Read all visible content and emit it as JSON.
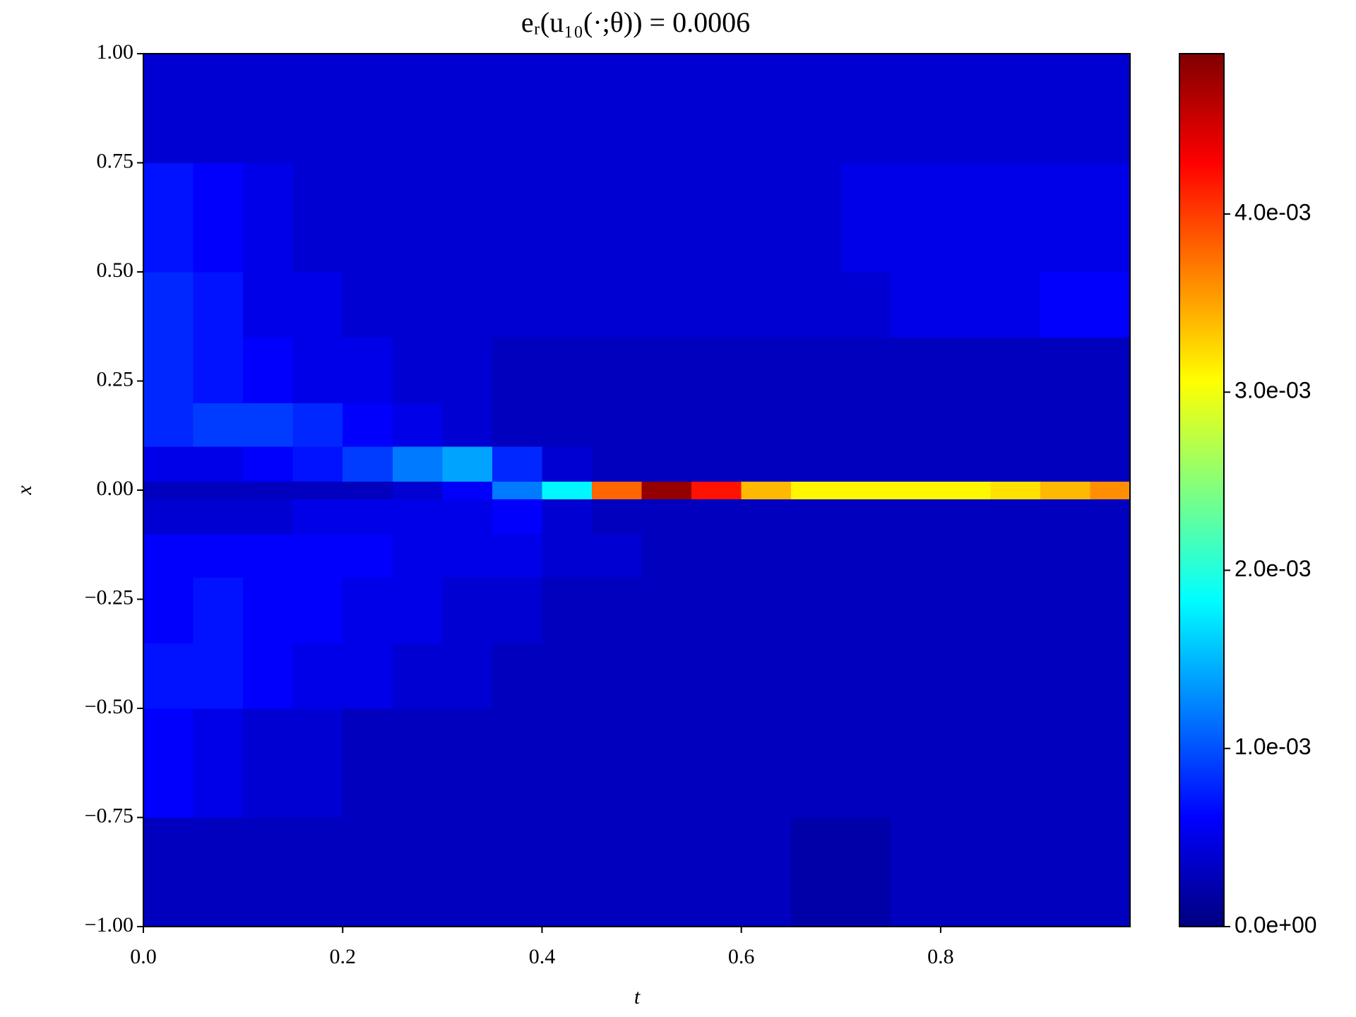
{
  "chart_data": {
    "type": "heatmap",
    "title": "eᵣ(u₁₀(·;θ)) = 0.0006",
    "x_label": "t",
    "y_label": "x",
    "colormap": "jet",
    "xlim": [
      0,
      0.99
    ],
    "ylim": [
      -1,
      1
    ],
    "clim": [
      0,
      0.0049
    ],
    "xticks": [
      {
        "value": 0,
        "label": "0.0"
      },
      {
        "value": 0.2,
        "label": "0.2"
      },
      {
        "value": 0.4,
        "label": "0.4"
      },
      {
        "value": 0.6,
        "label": "0.6"
      },
      {
        "value": 0.8,
        "label": "0.8"
      }
    ],
    "yticks": [
      {
        "value": -1,
        "label": "−1.00"
      },
      {
        "value": -0.75,
        "label": "−0.75"
      },
      {
        "value": -0.5,
        "label": "−0.50"
      },
      {
        "value": -0.25,
        "label": "−0.25"
      },
      {
        "value": 0,
        "label": "0.00"
      },
      {
        "value": 0.25,
        "label": "0.25"
      },
      {
        "value": 0.5,
        "label": "0.50"
      },
      {
        "value": 0.75,
        "label": "0.75"
      },
      {
        "value": 1,
        "label": "1.00"
      }
    ],
    "cticks": [
      {
        "value": 0,
        "label": "0.0e+00"
      },
      {
        "value": 0.001,
        "label": "1.0e-03"
      },
      {
        "value": 0.002,
        "label": "2.0e-03"
      },
      {
        "value": 0.003,
        "label": "3.0e-03"
      },
      {
        "value": 0.004,
        "label": "4.0e-03"
      }
    ],
    "xbins": [
      0,
      0.05,
      0.1,
      0.15,
      0.2,
      0.25,
      0.3,
      0.35,
      0.4,
      0.45,
      0.5,
      0.55,
      0.6,
      0.65,
      0.7,
      0.75,
      0.8,
      0.85,
      0.9,
      0.95,
      0.99
    ],
    "ybins": [
      -1,
      -0.75,
      -0.5,
      -0.35,
      -0.2,
      -0.1,
      -0.02,
      0.02,
      0.1,
      0.2,
      0.35,
      0.5,
      0.75,
      1
    ],
    "values": [
      [
        0.0003,
        0.0003,
        0.0003,
        0.0003,
        0.0003,
        0.0003,
        0.0003,
        0.0003,
        0.0003,
        0.0003,
        0.0003,
        0.0003,
        0.0003,
        0.0002,
        0.0002,
        0.0003,
        0.0003,
        0.0003,
        0.0003,
        0.0003
      ],
      [
        0.0006,
        0.0005,
        0.0004,
        0.0004,
        0.0003,
        0.0003,
        0.0003,
        0.0003,
        0.0003,
        0.0003,
        0.0003,
        0.0003,
        0.0003,
        0.0003,
        0.0003,
        0.0003,
        0.0003,
        0.0003,
        0.0003,
        0.0003
      ],
      [
        0.0007,
        0.0007,
        0.0006,
        0.0005,
        0.0005,
        0.0004,
        0.0004,
        0.0003,
        0.0003,
        0.0003,
        0.0003,
        0.0003,
        0.0003,
        0.0003,
        0.0003,
        0.0003,
        0.0003,
        0.0003,
        0.0003,
        0.0003
      ],
      [
        0.0006,
        0.0007,
        0.0006,
        0.0006,
        0.0005,
        0.0005,
        0.0004,
        0.0004,
        0.0003,
        0.0003,
        0.0003,
        0.0003,
        0.0003,
        0.0003,
        0.0003,
        0.0003,
        0.0003,
        0.0003,
        0.0003,
        0.0003
      ],
      [
        0.0006,
        0.0006,
        0.0006,
        0.0006,
        0.0006,
        0.0005,
        0.0005,
        0.0005,
        0.0004,
        0.0004,
        0.0003,
        0.0003,
        0.0003,
        0.0003,
        0.0003,
        0.0003,
        0.0003,
        0.0003,
        0.0003,
        0.0003
      ],
      [
        0.0004,
        0.0004,
        0.0004,
        0.0005,
        0.0005,
        0.0005,
        0.0005,
        0.0006,
        0.0004,
        0.0003,
        0.0003,
        0.0003,
        0.0003,
        0.0003,
        0.0003,
        0.0003,
        0.0003,
        0.0003,
        0.0003,
        0.0003
      ],
      [
        0.0003,
        0.0003,
        0.0003,
        0.0003,
        0.0003,
        0.0004,
        0.0006,
        0.0012,
        0.0018,
        0.0038,
        0.0048,
        0.0042,
        0.0034,
        0.0031,
        0.0031,
        0.0031,
        0.0031,
        0.0032,
        0.0034,
        0.0036
      ],
      [
        0.0005,
        0.0005,
        0.0006,
        0.0007,
        0.0009,
        0.0012,
        0.0014,
        0.0008,
        0.0004,
        0.0003,
        0.0003,
        0.0003,
        0.0003,
        0.0003,
        0.0003,
        0.0003,
        0.0003,
        0.0003,
        0.0003,
        0.0003
      ],
      [
        0.0008,
        0.0009,
        0.0009,
        0.0008,
        0.0006,
        0.0005,
        0.0004,
        0.0003,
        0.0003,
        0.0003,
        0.0003,
        0.0003,
        0.0003,
        0.0003,
        0.0003,
        0.0003,
        0.0003,
        0.0003,
        0.0003,
        0.0003
      ],
      [
        0.0008,
        0.0007,
        0.0006,
        0.0005,
        0.0005,
        0.0004,
        0.0004,
        0.0003,
        0.0003,
        0.0003,
        0.0003,
        0.0003,
        0.0003,
        0.0003,
        0.0003,
        0.0003,
        0.0003,
        0.0003,
        0.0003,
        0.0003
      ],
      [
        0.0008,
        0.0007,
        0.0005,
        0.0005,
        0.0004,
        0.0004,
        0.0004,
        0.0004,
        0.0004,
        0.0004,
        0.0004,
        0.0004,
        0.0004,
        0.0004,
        0.0004,
        0.0005,
        0.0005,
        0.0005,
        0.0006,
        0.0006
      ],
      [
        0.0007,
        0.0006,
        0.0005,
        0.0004,
        0.0004,
        0.0004,
        0.0004,
        0.0004,
        0.0004,
        0.0004,
        0.0004,
        0.0004,
        0.0004,
        0.0004,
        0.0005,
        0.0005,
        0.0005,
        0.0005,
        0.0005,
        0.0005
      ],
      [
        0.0004,
        0.0004,
        0.0004,
        0.0004,
        0.0004,
        0.0004,
        0.0004,
        0.0004,
        0.0004,
        0.0004,
        0.0004,
        0.0004,
        0.0004,
        0.0004,
        0.0004,
        0.0004,
        0.0004,
        0.0004,
        0.0004,
        0.0004
      ]
    ]
  }
}
